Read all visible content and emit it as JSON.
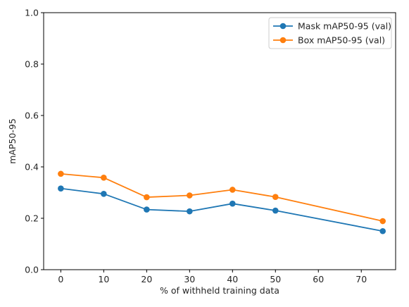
{
  "chart_data": {
    "type": "line",
    "xlabel": "% of withheld training data",
    "ylabel": "mAP50-95",
    "xlim": [
      -4,
      78
    ],
    "ylim": [
      0.0,
      1.0
    ],
    "x_ticks": [
      0,
      10,
      20,
      30,
      40,
      50,
      60,
      70
    ],
    "y_ticks": [
      0.0,
      0.2,
      0.4,
      0.6,
      0.8,
      1.0
    ],
    "x_tick_labels": [
      "0",
      "10",
      "20",
      "30",
      "40",
      "50",
      "60",
      "70"
    ],
    "y_tick_labels": [
      "0.0",
      "0.2",
      "0.4",
      "0.6",
      "0.8",
      "1.0"
    ],
    "grid": false,
    "legend_position": "top-right",
    "x": [
      0,
      10,
      20,
      30,
      40,
      50,
      75
    ],
    "series": [
      {
        "name": "Mask mAP50-95 (val)",
        "color": "#1f77b4",
        "values": [
          0.316,
          0.295,
          0.234,
          0.227,
          0.257,
          0.23,
          0.15
        ]
      },
      {
        "name": "Box mAP50-95 (val)",
        "color": "#ff7f0e",
        "values": [
          0.373,
          0.358,
          0.282,
          0.289,
          0.311,
          0.283,
          0.189
        ]
      }
    ]
  }
}
